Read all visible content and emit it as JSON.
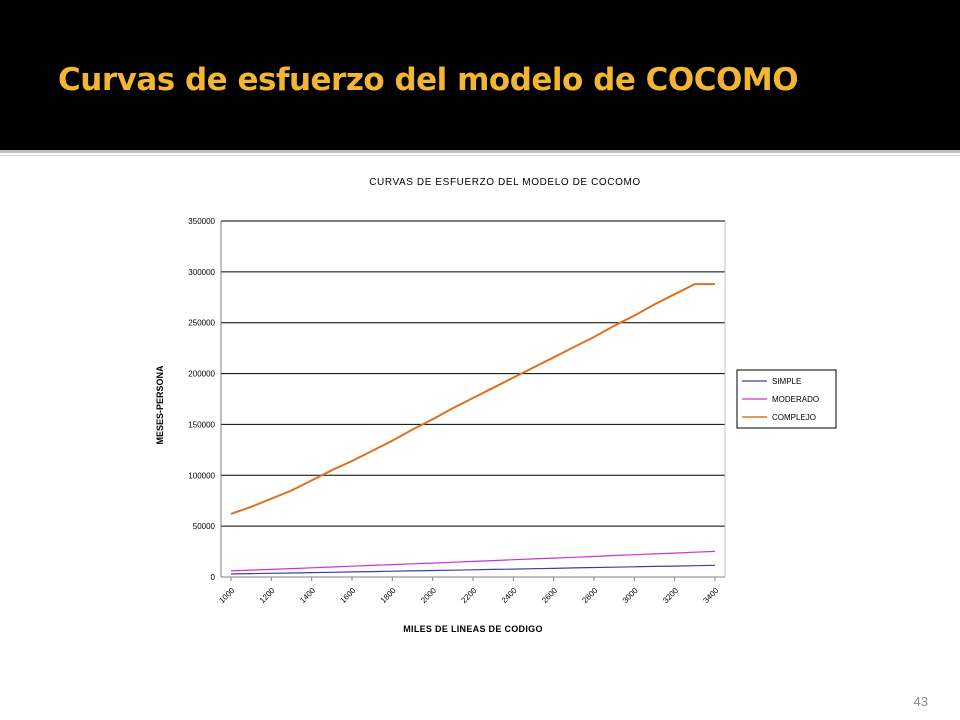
{
  "slide": {
    "title": "Curvas de esfuerzo del modelo de COCOMO",
    "page_number": "43",
    "title_color": "#f2b632",
    "header_color": "#000000"
  },
  "chart_data": {
    "type": "line",
    "title": "CURVAS DE ESFUERZO DEL MODELO DE COCOMO",
    "xlabel": "MILES DE LINEAS DE CODIGO",
    "ylabel": "MESES-PERSONA",
    "x": [
      1000,
      1100,
      1200,
      1300,
      1400,
      1500,
      1600,
      1700,
      1800,
      1900,
      2000,
      2100,
      2200,
      2300,
      2400,
      2500,
      2600,
      2700,
      2800,
      2900,
      3000,
      3100,
      3200,
      3300,
      3400
    ],
    "x_ticks": [
      "1000",
      "1200",
      "1400",
      "1600",
      "1800",
      "2000",
      "2200",
      "2400",
      "2600",
      "2800",
      "3000",
      "3200",
      "3400"
    ],
    "y_ticks": [
      "0",
      "50000",
      "100000",
      "150000",
      "200000",
      "250000",
      "300000",
      "350000"
    ],
    "ylim": [
      0,
      350000
    ],
    "grid": true,
    "legend_position": "right",
    "series": [
      {
        "name": "SIMPLE",
        "color": "#3f3f9f",
        "values": [
          3000,
          3300,
          3600,
          3900,
          4300,
          4600,
          5000,
          5300,
          5700,
          6000,
          6400,
          6700,
          7100,
          7500,
          7800,
          8200,
          8500,
          8900,
          9300,
          9600,
          10000,
          10400,
          10700,
          11100,
          11500
        ]
      },
      {
        "name": "MODERADO",
        "color": "#cc33cc",
        "values": [
          6000,
          6800,
          7500,
          8300,
          9000,
          9800,
          10600,
          11400,
          12200,
          13000,
          13700,
          14500,
          15300,
          16100,
          17000,
          17800,
          18600,
          19400,
          20200,
          21100,
          21900,
          22700,
          23500,
          24400,
          25200
        ]
      },
      {
        "name": "COMPLEJO",
        "color": "#e07020",
        "values": [
          62000,
          69000,
          77000,
          85000,
          95000,
          105000,
          114000,
          124000,
          134000,
          145000,
          155000,
          166000,
          176000,
          186000,
          196000,
          206000,
          216000,
          226000,
          236000,
          247000,
          257000,
          268000,
          278000,
          288000,
          288000
        ]
      }
    ]
  }
}
